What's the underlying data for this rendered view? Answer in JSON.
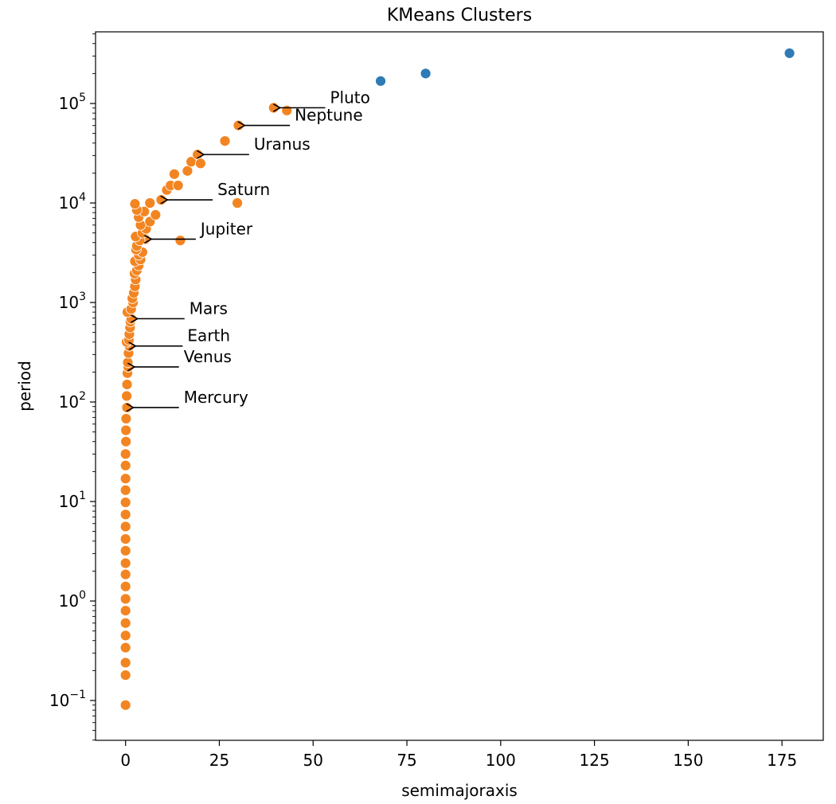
{
  "chart_data": {
    "type": "scatter",
    "title": "KMeans Clusters",
    "xlabel": "semimajoraxis",
    "ylabel": "period",
    "xlim": [
      -8,
      186
    ],
    "ylim_log10": [
      -1.4,
      1.0
    ],
    "yscale": "log",
    "x_ticks": [
      {
        "value": 0,
        "label": "0"
      },
      {
        "value": 25,
        "label": "25"
      },
      {
        "value": 50,
        "label": "50"
      },
      {
        "value": 75,
        "label": "75"
      },
      {
        "value": 100,
        "label": "100"
      },
      {
        "value": 125,
        "label": "125"
      },
      {
        "value": 150,
        "label": "150"
      },
      {
        "value": 175,
        "label": "175"
      }
    ],
    "y_ticks": [
      {
        "exp": -1,
        "base": "10",
        "sup": "−1"
      },
      {
        "exp": 0,
        "base": "10",
        "sup": "0"
      },
      {
        "exp": 1,
        "base": "10",
        "sup": "1"
      },
      {
        "exp": 2,
        "base": "10",
        "sup": "2"
      },
      {
        "exp": 3,
        "base": "10",
        "sup": "3"
      },
      {
        "exp": 4,
        "base": "10",
        "sup": "4"
      },
      {
        "exp": 5,
        "base": "10",
        "sup": "5"
      }
    ],
    "grid": false,
    "colors": {
      "cluster_0": "#f28522",
      "cluster_1": "#2f7bb6"
    },
    "series": [
      {
        "color": "#f28522",
        "points": [
          [
            0.0,
            0.09
          ],
          [
            0.0,
            0.18
          ],
          [
            0.0,
            0.24
          ],
          [
            0.0,
            0.34
          ],
          [
            0.0,
            0.45
          ],
          [
            0.0,
            0.6
          ],
          [
            0.0,
            0.8
          ],
          [
            0.0,
            1.05
          ],
          [
            0.0,
            1.4
          ],
          [
            0.0,
            1.85
          ],
          [
            0.0,
            2.4
          ],
          [
            0.0,
            3.2
          ],
          [
            0.0,
            4.2
          ],
          [
            0.0,
            5.6
          ],
          [
            0.0,
            7.4
          ],
          [
            0.0,
            9.8
          ],
          [
            0.0,
            13
          ],
          [
            0.0,
            17
          ],
          [
            0.0,
            23
          ],
          [
            0.0,
            30
          ],
          [
            0.1,
            40
          ],
          [
            0.1,
            52
          ],
          [
            0.15,
            68
          ],
          [
            0.2,
            88
          ],
          [
            0.39,
            88
          ],
          [
            0.3,
            115
          ],
          [
            0.4,
            150
          ],
          [
            0.5,
            195
          ],
          [
            0.72,
            225
          ],
          [
            0.6,
            250
          ],
          [
            0.8,
            310
          ],
          [
            1.0,
            365
          ],
          [
            0.3,
            400
          ],
          [
            0.9,
            420
          ],
          [
            1.0,
            480
          ],
          [
            1.2,
            560
          ],
          [
            1.3,
            640
          ],
          [
            1.52,
            687
          ],
          [
            0.5,
            800
          ],
          [
            1.5,
            860
          ],
          [
            2.0,
            1000
          ],
          [
            1.8,
            1100
          ],
          [
            2.2,
            1250
          ],
          [
            2.5,
            1450
          ],
          [
            2.7,
            1700
          ],
          [
            2.4,
            1950
          ],
          [
            3.0,
            2100
          ],
          [
            3.5,
            2350
          ],
          [
            2.5,
            2600
          ],
          [
            4.0,
            2700
          ],
          [
            3.5,
            3000
          ],
          [
            4.5,
            3200
          ],
          [
            2.8,
            3400
          ],
          [
            3.0,
            3700
          ],
          [
            5.2,
            4333
          ],
          [
            3.8,
            4200
          ],
          [
            2.7,
            4600
          ],
          [
            4.5,
            5000
          ],
          [
            5.5,
            5500
          ],
          [
            4.0,
            6000
          ],
          [
            6.5,
            6500
          ],
          [
            3.5,
            7200
          ],
          [
            8.0,
            7600
          ],
          [
            5.0,
            8200
          ],
          [
            3.0,
            8500
          ],
          [
            2.5,
            9800
          ],
          [
            6.5,
            10000
          ],
          [
            9.5,
            10759
          ],
          [
            14.6,
            4200
          ],
          [
            29.8,
            10000
          ],
          [
            11.0,
            13500
          ],
          [
            12.0,
            15000
          ],
          [
            14.0,
            15000
          ],
          [
            13.0,
            19500
          ],
          [
            16.5,
            21000
          ],
          [
            17.5,
            26000
          ],
          [
            19.2,
            30687
          ],
          [
            20.0,
            25000
          ],
          [
            26.5,
            42000
          ],
          [
            30.1,
            60190
          ],
          [
            39.5,
            90560
          ],
          [
            43.0,
            85000
          ]
        ]
      },
      {
        "color": "#2f7bb6",
        "points": [
          [
            68.0,
            168000
          ],
          [
            80.0,
            200000
          ],
          [
            177.0,
            320000
          ]
        ]
      }
    ],
    "annotations": [
      {
        "text": "Mercury",
        "x": 0.39,
        "y": 88,
        "label_x": 15.5,
        "label_y": 88
      },
      {
        "text": "Venus",
        "x": 0.72,
        "y": 225,
        "label_x": 15.5,
        "label_y": 225
      },
      {
        "text": "Earth",
        "x": 1.0,
        "y": 365,
        "label_x": 16.5,
        "label_y": 365
      },
      {
        "text": "Mars",
        "x": 1.52,
        "y": 687,
        "label_x": 17.0,
        "label_y": 687
      },
      {
        "text": "Jupiter",
        "x": 5.2,
        "y": 4333,
        "label_x": 20.0,
        "label_y": 4333
      },
      {
        "text": "Saturn",
        "x": 9.5,
        "y": 10759,
        "label_x": 24.5,
        "label_y": 10759
      },
      {
        "text": "Uranus",
        "x": 19.2,
        "y": 30687,
        "label_x": 34.2,
        "label_y": 30687
      },
      {
        "text": "Neptune",
        "x": 30.1,
        "y": 60190,
        "label_x": 45.1,
        "label_y": 60190
      },
      {
        "text": "Pluto",
        "x": 39.5,
        "y": 90560,
        "label_x": 54.5,
        "label_y": 90560
      }
    ]
  }
}
